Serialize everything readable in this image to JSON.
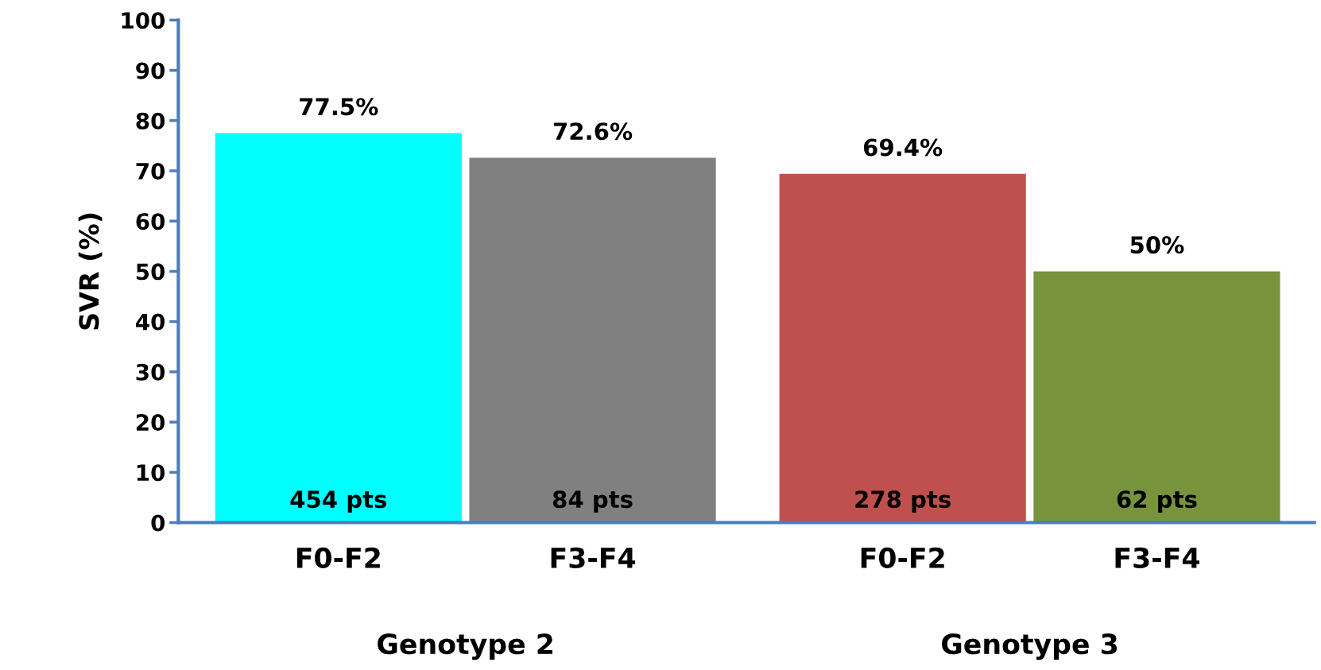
{
  "chart_data": {
    "type": "bar",
    "categories": [
      "F0-F2",
      "F3-F4",
      "F0-F2",
      "F3-F4"
    ],
    "values": [
      77.5,
      72.6,
      69.4,
      50
    ],
    "colors": [
      "#00ffff",
      "#808080",
      "#c0504d",
      "#77933c"
    ],
    "value_labels": [
      "77.5%",
      "72.6%",
      "69.4%",
      "50%"
    ],
    "ylabel": "SVR (%)",
    "ylim": [
      0,
      100
    ],
    "yticks": [
      0,
      10,
      20,
      30,
      40,
      50,
      60,
      70,
      80,
      90,
      100
    ],
    "grid": false,
    "legend": false,
    "annotations": [
      "454 pts",
      "84 pts",
      "278 pts",
      "62 pts",
      "Genotype 2",
      "Genotype 3"
    ]
  }
}
